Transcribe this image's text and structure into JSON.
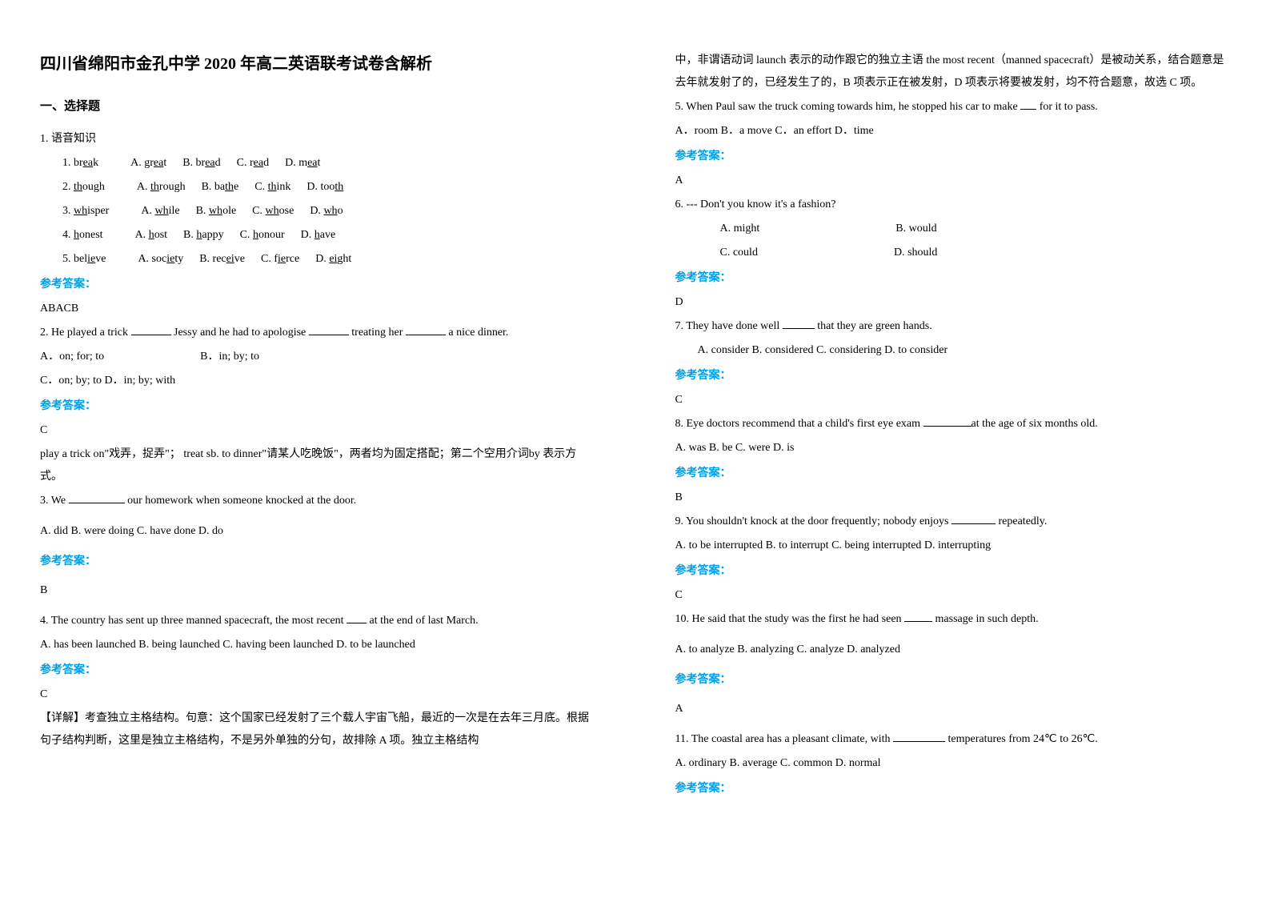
{
  "title": "四川省绵阳市金孔中学 2020 年高二英语联考试卷含解析",
  "section1": "一、选择题",
  "q1": {
    "stem": "1. 语音知识",
    "subs": [
      {
        "n": "1.",
        "word_pre": "br",
        "u": "ea",
        "word_post": "k",
        "a": "A. gr",
        "au": "ea",
        "at": "t",
        "b": "B. br",
        "bu": "ea",
        "bt": "d",
        "c": "C. r",
        "cu": "ea",
        "ct": "d",
        "d": "D. m",
        "du": "ea",
        "dt": "t"
      },
      {
        "n": "2.",
        "word_pre": "",
        "u": "th",
        "word_post": "ough",
        "a": "A. ",
        "au": "th",
        "at": "rough",
        "b": "B. ba",
        "bu": "th",
        "bt": "e",
        "c": "C. ",
        "cu": "th",
        "ct": "ink",
        "d": "D. too",
        "du": "th",
        "dt": ""
      },
      {
        "n": "3.",
        "word_pre": "",
        "u": "wh",
        "word_post": "isper",
        "a": "A. ",
        "au": "wh",
        "at": "ile",
        "b": "B. ",
        "bu": "wh",
        "bt": "ole",
        "c": "C. ",
        "cu": "wh",
        "ct": "ose",
        "d": "D. ",
        "du": "wh",
        "dt": "o"
      },
      {
        "n": "4.",
        "word_pre": "",
        "u": "h",
        "word_post": "onest",
        "a": "A. ",
        "au": "h",
        "at": "ost",
        "b": "B. ",
        "bu": "h",
        "bt": "appy",
        "c": "C. ",
        "cu": "h",
        "ct": "onour",
        "d": "D. ",
        "du": "h",
        "dt": "ave"
      },
      {
        "n": "5.",
        "word_pre": "bel",
        "u": "ie",
        "word_post": "ve",
        "a": "A. soc",
        "au": "ie",
        "at": "ty",
        "b": "B. rec",
        "bu": "ei",
        "bt": "ve",
        "c": "C. f",
        "cu": "ie",
        "ct": "rce",
        "d": "D. ",
        "du": "ei",
        "dt": "ght"
      }
    ],
    "ans_label": "参考答案：",
    "ans": "ABACB"
  },
  "q2": {
    "stem_a": "2. He played a trick ",
    "stem_b": " Jessy and he had to apologise ",
    "stem_c": " treating her ",
    "stem_d": " a nice dinner.",
    "opts_line1": "A．on; for; to",
    "opts_line1b": "B．in; by; to",
    "opts_line2": "C．on; by; to    D．in; by; with",
    "ans_label": "参考答案：",
    "ans": "C",
    "exp": "play a trick on\"戏弄，捉弄\"； treat sb. to dinner\"请某人吃晚饭\"，两者均为固定搭配；第二个空用介词by 表示方式。"
  },
  "q3": {
    "stem_a": "3. We ",
    "stem_b": " our homework when someone knocked at the door.",
    "opts": "A. did             B. were doing     C. have done     D. do",
    "ans_label": "参考答案：",
    "ans": "B"
  },
  "q4": {
    "stem_a": "4. The country has sent up three manned spacecraft, the most recent ",
    "stem_b": " at the end of last March.",
    "opts": "A. has been launched    B. being launched           C. having been launched          D. to be launched",
    "ans_label": "参考答案：",
    "ans": "C",
    "exp": "【详解】考查独立主格结构。句意：这个国家已经发射了三个载人宇宙飞船，最近的一次是在去年三月底。根据句子结构判断，这里是独立主格结构，不是另外单独的分句，故排除 A 项。独立主格结构"
  },
  "col2_top": "中，非谓语动词 launch 表示的动作跟它的独立主语 the most recent（manned spacecraft）是被动关系，结合题意是去年就发射了的，已经发生了的，B 项表示正在被发射，D 项表示将要被发射，均不符合题意，故选 C 项。",
  "q5": {
    "stem_a": "5. When Paul saw the truck coming towards him, he stopped his car to make ",
    "stem_b": " for it to pass.",
    "opts": "A．room         B．a move        C．an effort     D．time",
    "ans_label": "参考答案：",
    "ans": "A"
  },
  "q6": {
    "stem": "6. --- Don't you know it's a fashion?",
    "opts1_a": "A. might",
    "opts1_b": "B. would",
    "opts2_a": "C. could",
    "opts2_b": "D. should",
    "ans_label": "参考答案：",
    "ans": "D"
  },
  "q7": {
    "stem_a": "7. They have done well ",
    "stem_b": " that they are green hands.",
    "opts": "A. consider                                B. considered             C. considering              D. to consider",
    "ans_label": "参考答案：",
    "ans": "C"
  },
  "q8": {
    "stem_a": "8. Eye doctors recommend that a child's first eye exam ",
    "stem_b": "at the age of six months old.",
    "opts": "  A. was          B. be          C. were          D. is",
    "ans_label": "参考答案：",
    "ans": "B"
  },
  "q9": {
    "stem_a": "9. You shouldn't knock at the door frequently; nobody enjoys ",
    "stem_b": " repeatedly.",
    "opts": "A. to be interrupted  B. to interrupt    C. being interrupted   D. interrupting",
    "ans_label": "参考答案：",
    "ans": "C"
  },
  "q10": {
    "stem_a": "10. He said that the study was the first he had seen ",
    "stem_b": " massage in such depth.",
    "opts": "A. to analyze             B. analyzing                  C. analyze                  D. analyzed",
    "ans_label": "参考答案：",
    "ans": "A"
  },
  "q11": {
    "stem_a": "11. The coastal area has a pleasant climate, with ",
    "stem_b": " temperatures from 24℃ to 26℃.",
    "opts": "A. ordinary   B. average   C. common   D. normal",
    "ans_label": "参考答案："
  }
}
